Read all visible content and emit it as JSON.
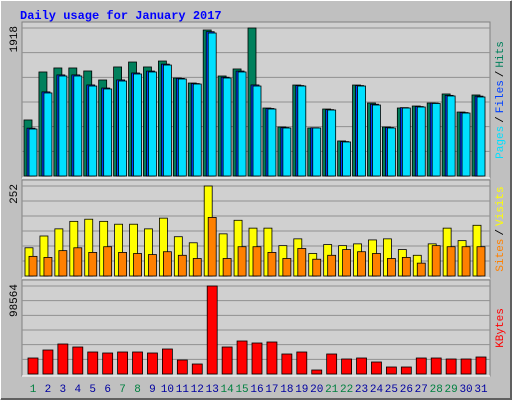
{
  "chart_data": {
    "type": "bar",
    "title": "Daily usage for January 2017",
    "categories": [
      "1",
      "2",
      "3",
      "4",
      "5",
      "6",
      "7",
      "8",
      "9",
      "10",
      "11",
      "12",
      "13",
      "14",
      "15",
      "16",
      "17",
      "18",
      "19",
      "20",
      "21",
      "22",
      "23",
      "24",
      "25",
      "26",
      "27",
      "28",
      "29",
      "30",
      "31"
    ],
    "category_colors": [
      "#008040",
      "#0000a0",
      "#0000a0",
      "#0000a0",
      "#0000a0",
      "#0000a0",
      "#008040",
      "#008040",
      "#0000a0",
      "#0000a0",
      "#0000a0",
      "#0000a0",
      "#0000a0",
      "#008040",
      "#008040",
      "#0000a0",
      "#0000a0",
      "#0000a0",
      "#0000a0",
      "#0000a0",
      "#008040",
      "#008040",
      "#0000a0",
      "#0000a0",
      "#0000a0",
      "#0000a0",
      "#0000a0",
      "#008040",
      "#008040",
      "#0000a0",
      "#0000a0"
    ],
    "legend_separator": "/",
    "grid": true,
    "panels": [
      {
        "ylim": [
          0,
          1918
        ],
        "yticks": [
          1918
        ],
        "series": [
          {
            "name": "Hits",
            "color": "#00805c",
            "values": [
              726,
              1348,
              1400,
              1400,
              1361,
              1244,
              1413,
              1477,
              1413,
              1490,
              1270,
              1205,
              1892,
              1296,
              1387,
              1918,
              881,
              635,
              1179,
              622,
              868,
              454,
              1179,
              946,
              635,
              881,
              907,
              946,
              1063,
              829,
              1050
            ]
          },
          {
            "name": "Files",
            "color": "#0040ff",
            "values": [
              620,
              1090,
              1310,
              1310,
              1180,
              1140,
              1245,
              1335,
              1360,
              1450,
              1265,
              1198,
              1870,
              1280,
              1360,
              1180,
              875,
              628,
              1172,
              625,
              860,
              446,
              1172,
              930,
              628,
              886,
              900,
              945,
              1045,
              822,
              1035
            ]
          },
          {
            "name": "Pages",
            "color": "#00e0ff",
            "values": [
              609,
              1076,
              1296,
              1296,
              1166,
              1128,
              1231,
              1322,
              1348,
              1438,
              1257,
              1192,
              1853,
              1270,
              1348,
              1166,
              868,
              622,
              1166,
              622,
              855,
              441,
              1166,
              920,
              622,
              881,
              894,
              940,
              1037,
              816,
              1024
            ]
          }
        ]
      },
      {
        "ylim": [
          0,
          252
        ],
        "yticks": [
          252
        ],
        "series": [
          {
            "name": "Visits",
            "color": "#ffff00",
            "values": [
              79,
              112,
              132,
              153,
              159,
              153,
              145,
              145,
              132,
              162,
              110,
              93,
              252,
              118,
              156,
              134,
              134,
              85,
              104,
              63,
              88,
              85,
              90,
              101,
              104,
              74,
              58,
              90,
              134,
              99,
              142
            ]
          },
          {
            "name": "Sites",
            "color": "#ff8000",
            "values": [
              55,
              52,
              71,
              79,
              66,
              82,
              66,
              63,
              60,
              68,
              58,
              49,
              164,
              49,
              82,
              82,
              66,
              49,
              77,
              47,
              58,
              74,
              68,
              63,
              49,
              52,
              36,
              85,
              82,
              82,
              82
            ]
          }
        ]
      },
      {
        "ylim": [
          0,
          98564
        ],
        "yticks": [
          98564
        ],
        "series": [
          {
            "name": "KBytes",
            "color": "#ff0000",
            "values": [
              17920,
              26880,
              33600,
              30240,
              24640,
              23520,
              24640,
              24640,
              23520,
              28000,
              15680,
              11200,
              98564,
              30240,
              36960,
              34720,
              35840,
              22400,
              24640,
              4480,
              22400,
              16800,
              17920,
              13440,
              7840,
              7840,
              17920,
              17920,
              16800,
              16800,
              19040
            ]
          }
        ]
      }
    ]
  }
}
